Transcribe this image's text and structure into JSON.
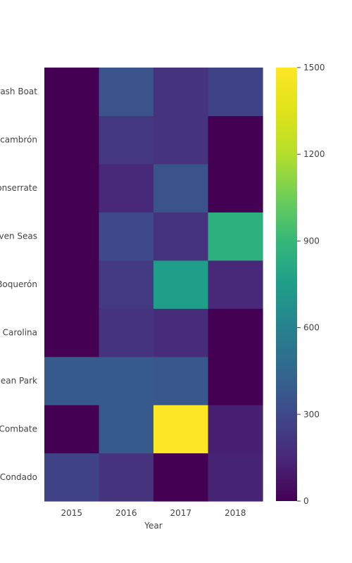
{
  "chart_data": {
    "type": "heatmap",
    "title": "",
    "xlabel": "Year",
    "ylabel": "",
    "x": [
      "2015",
      "2016",
      "2017",
      "2018"
    ],
    "y": [
      "Condado",
      "Combate",
      "Ocean Park",
      "Carolina",
      "Boquerón",
      "Seven Seas",
      "Monserrate",
      "Escambrón",
      "Crash Boat"
    ],
    "values": [
      [
        270,
        200,
        0,
        130
      ],
      [
        0,
        380,
        1500,
        120
      ],
      [
        380,
        380,
        370,
        0
      ],
      [
        0,
        200,
        170,
        0
      ],
      [
        0,
        230,
        750,
        150
      ],
      [
        0,
        300,
        200,
        850
      ],
      [
        0,
        150,
        350,
        0
      ],
      [
        0,
        220,
        200,
        0
      ],
      [
        0,
        350,
        200,
        270
      ]
    ],
    "colorbar": {
      "colorscale": "viridis",
      "range": [
        0,
        1500
      ],
      "ticks": [
        0,
        300,
        600,
        900,
        1200,
        1500
      ]
    }
  }
}
